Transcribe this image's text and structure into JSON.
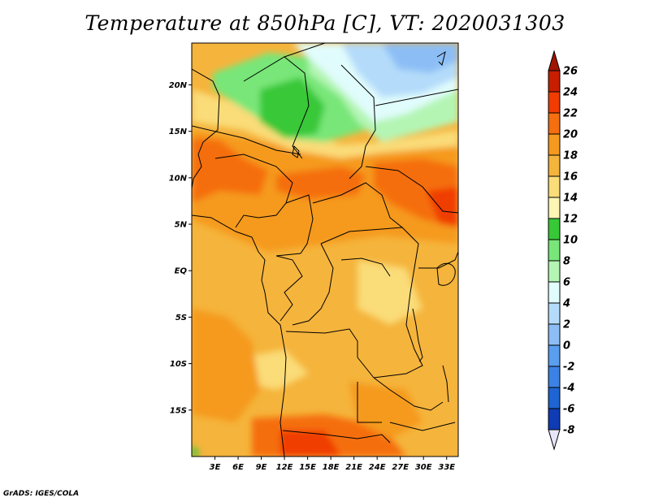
{
  "title": "Temperature at 850hPa [C], VT: 2020031303",
  "credit": "GrADS: IGES/COLA",
  "map": {
    "lon_range": [
      0,
      34.5
    ],
    "lat_range": [
      -20,
      24.5
    ],
    "lat_ticks": [
      {
        "value": 20,
        "label": "20N"
      },
      {
        "value": 15,
        "label": "15N"
      },
      {
        "value": 10,
        "label": "10N"
      },
      {
        "value": 5,
        "label": "5N"
      },
      {
        "value": 0,
        "label": "EQ"
      },
      {
        "value": -5,
        "label": "5S"
      },
      {
        "value": -10,
        "label": "10S"
      },
      {
        "value": -15,
        "label": "15S"
      }
    ],
    "lon_ticks": [
      {
        "value": 3,
        "label": "3E"
      },
      {
        "value": 6,
        "label": "6E"
      },
      {
        "value": 9,
        "label": "9E"
      },
      {
        "value": 12,
        "label": "12E"
      },
      {
        "value": 15,
        "label": "15E"
      },
      {
        "value": 18,
        "label": "18E"
      },
      {
        "value": 21,
        "label": "21E"
      },
      {
        "value": 24,
        "label": "24E"
      },
      {
        "value": 27,
        "label": "27E"
      },
      {
        "value": 30,
        "label": "30E"
      },
      {
        "value": 33,
        "label": "33E"
      }
    ]
  },
  "colorbar": {
    "levels": [
      "26",
      "24",
      "22",
      "20",
      "18",
      "16",
      "14",
      "12",
      "10",
      "8",
      "6",
      "4",
      "2",
      "0",
      "-2",
      "-4",
      "-6",
      "-8"
    ],
    "colors": [
      "#c81e00",
      "#f03c00",
      "#f56e0f",
      "#f59a1e",
      "#f5b43c",
      "#fadc78",
      "#fcf5b4",
      "#37c837",
      "#78e678",
      "#b4f5b4",
      "#e1fcfc",
      "#b4dcfa",
      "#8cbef5",
      "#5a9ef0",
      "#3c82e6",
      "#1e64d2",
      "#0f3cb4",
      "#0a1478"
    ],
    "top_color": "#a01400",
    "bottom_color": "#e6e6fa"
  }
}
